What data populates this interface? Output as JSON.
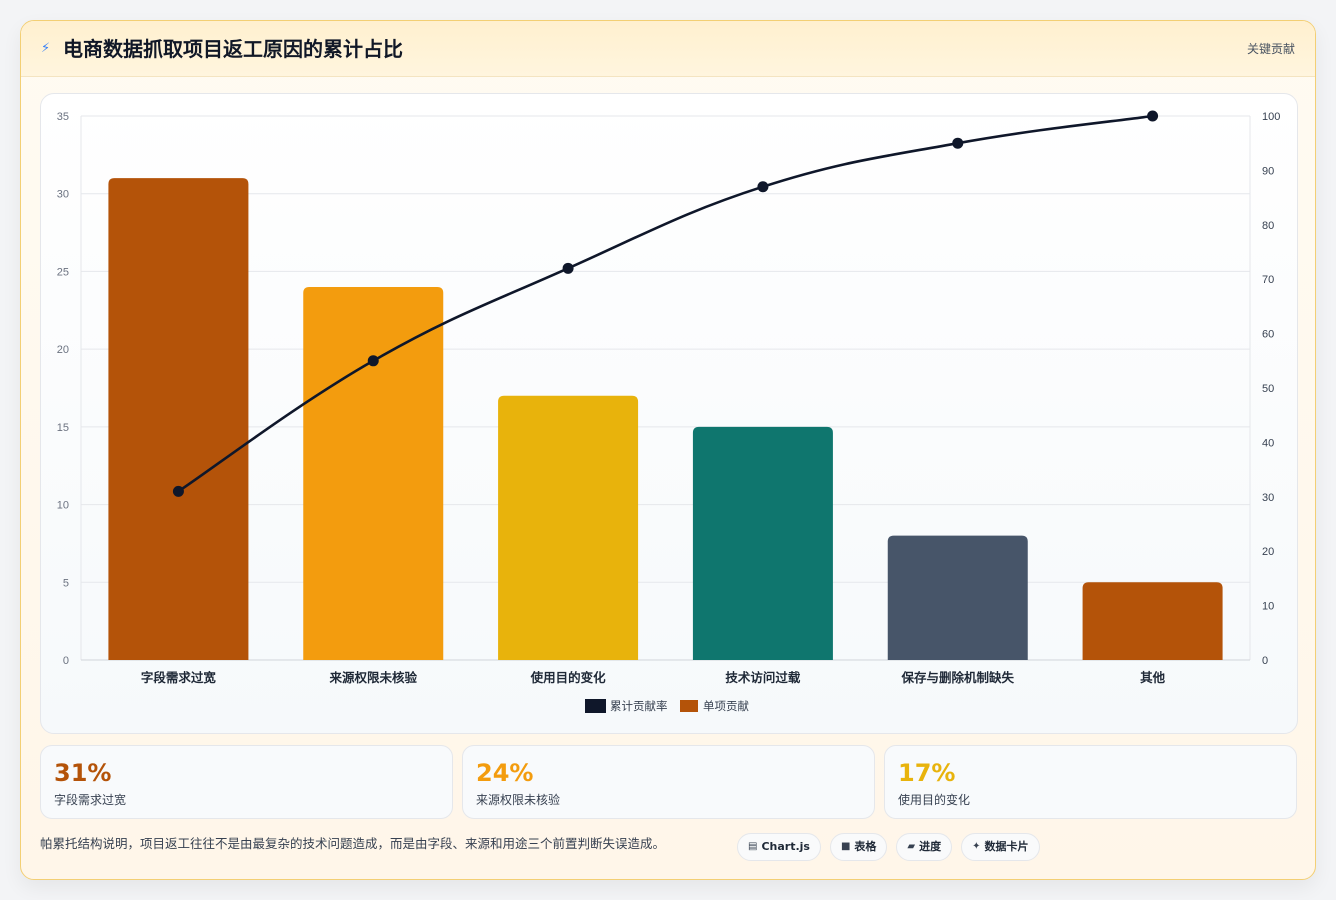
{
  "header": {
    "icon": "lightning-icon",
    "title": "电商数据抓取项目返工原因的累计占比",
    "tag": "关键贡献"
  },
  "chart_data": {
    "type": "bar",
    "categories": [
      "字段需求过宽",
      "来源权限未核验",
      "使用目的变化",
      "技术访问过载",
      "保存与删除机制缺失",
      "其他"
    ],
    "series": [
      {
        "name": "单项贡献",
        "type": "bar",
        "axis": "left",
        "values": [
          31,
          24,
          17,
          15,
          8,
          5
        ],
        "colors": [
          "#b45309",
          "#f39c0e",
          "#e8b30c",
          "#0f766e",
          "#475569",
          "#b45309"
        ]
      },
      {
        "name": "累计贡献率",
        "type": "line",
        "axis": "right",
        "values": [
          31,
          55,
          72,
          87,
          95,
          100
        ],
        "color": "#0f172a"
      }
    ],
    "ylim_left": [
      0,
      35
    ],
    "yticks_left": [
      0,
      5,
      10,
      15,
      20,
      25,
      30,
      35
    ],
    "ylim_right": [
      0,
      100
    ],
    "yticks_right": [
      0,
      10,
      20,
      30,
      40,
      50,
      60,
      70,
      80,
      90,
      100
    ],
    "legend_position": "bottom",
    "grid": true
  },
  "stats": [
    {
      "value": "31%",
      "label": "字段需求过宽",
      "color": "#b45309"
    },
    {
      "value": "24%",
      "label": "来源权限未核验",
      "color": "#f39c0e"
    },
    {
      "value": "17%",
      "label": "使用目的变化",
      "color": "#e8b30c"
    }
  ],
  "footnote": "帕累托结构说明，项目返工往往不是由最复杂的技术问题造成，而是由字段、来源和用途三个前置判断失误造成。",
  "chips": [
    {
      "icon": "chart-icon",
      "glyph": "▤",
      "label": "Chart.js"
    },
    {
      "icon": "table-icon",
      "glyph": "■",
      "label": "表格"
    },
    {
      "icon": "progress-icon",
      "glyph": "▰",
      "label": "进度"
    },
    {
      "icon": "sparkle-icon",
      "glyph": "✦",
      "label": "数据卡片"
    }
  ]
}
